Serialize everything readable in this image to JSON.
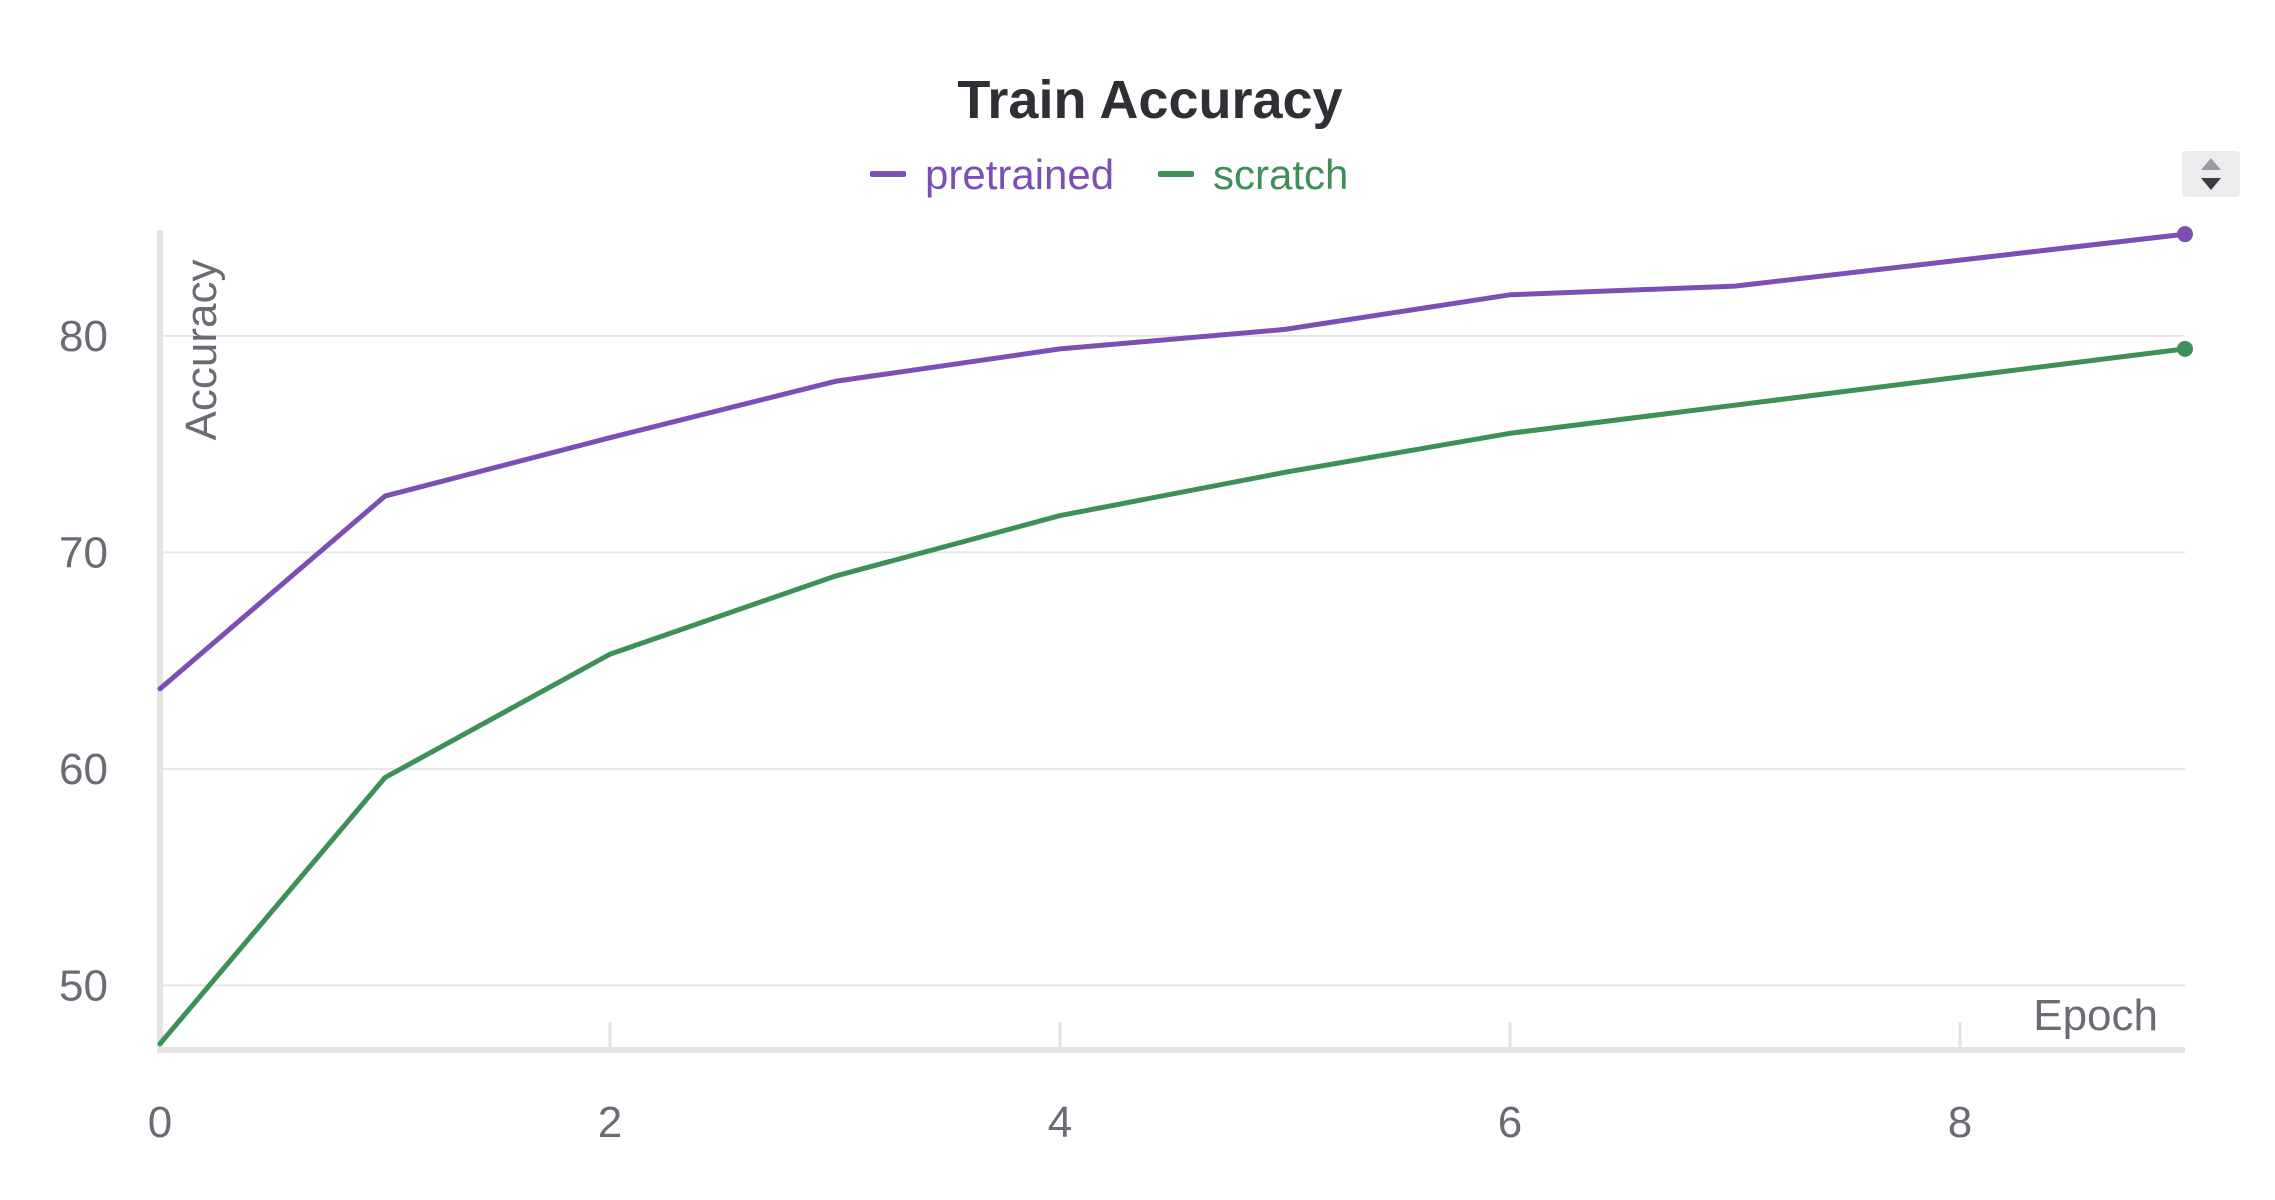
{
  "colors": {
    "pretrained": "#7c4fb5",
    "scratch": "#3f8f58",
    "text": "#6b6b76",
    "title": "#2f2f35"
  },
  "icons": {
    "sort_control": "sort-arrows-icon"
  },
  "chart_data": {
    "type": "line",
    "title": "Train Accuracy",
    "xlabel": "Epoch",
    "ylabel": "Accuracy",
    "x": [
      0,
      1,
      2,
      3,
      4,
      5,
      6,
      7,
      8,
      9
    ],
    "xlim": [
      0,
      9
    ],
    "ylim": [
      47.2,
      84.8
    ],
    "xticks": [
      "0",
      "2",
      "4",
      "6",
      "8"
    ],
    "yticks": [
      "50",
      "60",
      "70",
      "80"
    ],
    "grid": true,
    "legend_position": "top-center",
    "series": [
      {
        "name": "pretrained",
        "color": "#7c4fb5",
        "values": [
          63.7,
          72.6,
          75.3,
          77.9,
          79.4,
          80.3,
          81.9,
          82.3,
          83.5,
          84.7
        ]
      },
      {
        "name": "scratch",
        "color": "#3f8f58",
        "values": [
          47.3,
          59.6,
          65.3,
          68.9,
          71.7,
          73.7,
          75.5,
          76.8,
          78.1,
          79.4
        ]
      }
    ]
  }
}
